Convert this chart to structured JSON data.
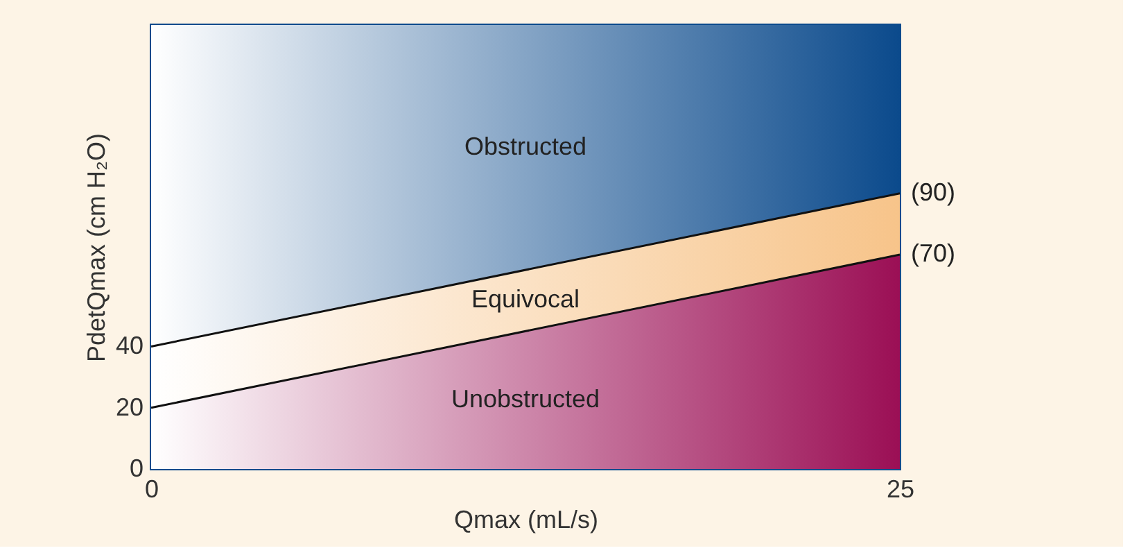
{
  "chart_data": {
    "type": "area",
    "stacked": true,
    "xlabel": "Qmax (mL/s)",
    "ylabel": "PdetQmax (cm H₂O)",
    "x": [
      0,
      25
    ],
    "series": [
      {
        "name": "Unobstructed",
        "color": "#9b0f55",
        "values": [
          20,
          70
        ]
      },
      {
        "name": "Equivocal",
        "color": "#f7c48a",
        "values": [
          20,
          20
        ]
      },
      {
        "name": "Obstructed",
        "color": "#0b4a8c",
        "values": [
          105,
          55
        ]
      }
    ],
    "xlim": [
      0,
      25
    ],
    "ylim": [
      0,
      145
    ],
    "xticks": [
      0,
      25
    ],
    "yticks": [
      0,
      20,
      40
    ],
    "grid": false,
    "annotations": [
      {
        "text": "(90)",
        "x": 25,
        "y": 90
      },
      {
        "text": "(70)",
        "x": 25,
        "y": 70
      }
    ]
  }
}
